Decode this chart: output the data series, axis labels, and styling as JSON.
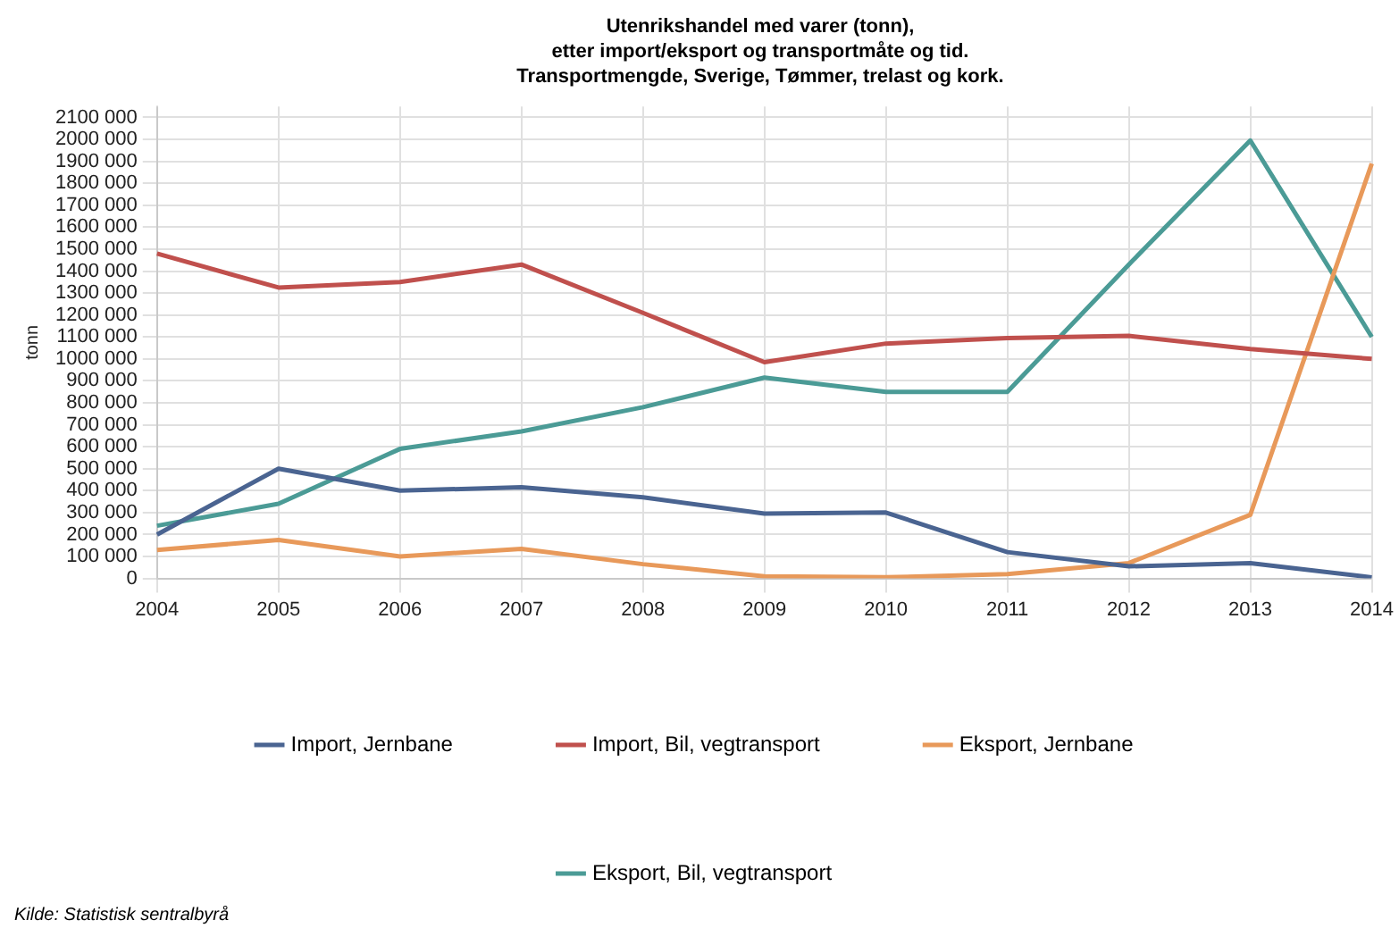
{
  "chart_data": {
    "type": "line",
    "title": "Utenrikshandel med varer (tonn),\netter import/eksport og transportmåte og tid.\nTransportmengde, Sverige, Tømmer, trelast og kork.",
    "ylabel": "tonn",
    "categories": [
      "2004",
      "2005",
      "2006",
      "2007",
      "2008",
      "2009",
      "2010",
      "2011",
      "2012",
      "2013",
      "2014"
    ],
    "series": [
      {
        "name": "Import, Jernbane",
        "color": "#4a6491",
        "values": [
          200000,
          500000,
          400000,
          415000,
          370000,
          295000,
          300000,
          120000,
          55000,
          70000,
          5000
        ]
      },
      {
        "name": "Import, Bil, vegtransport",
        "color": "#c0504d",
        "values": [
          1480000,
          1325000,
          1350000,
          1430000,
          1210000,
          985000,
          1070000,
          1095000,
          1105000,
          1045000,
          1000000
        ]
      },
      {
        "name": "Eksport, Jernbane",
        "color": "#e8995a",
        "values": [
          130000,
          175000,
          100000,
          135000,
          65000,
          10000,
          5000,
          20000,
          70000,
          290000,
          1890000
        ]
      },
      {
        "name": "Eksport, Bil, vegtransport",
        "color": "#4b9b96",
        "values": [
          240000,
          340000,
          590000,
          670000,
          780000,
          915000,
          850000,
          850000,
          1430000,
          1995000,
          1100000
        ]
      }
    ],
    "ylim": [
      0,
      2150000
    ],
    "yticks": [
      0,
      {
        "value": 100000,
        "label": "100 000"
      },
      {
        "value": 200000,
        "label": "200 000"
      },
      {
        "value": 300000,
        "label": "300 000"
      },
      {
        "value": 400000,
        "label": "400 000"
      },
      {
        "value": 500000,
        "label": "500 000"
      },
      {
        "value": 600000,
        "label": "600 000"
      },
      {
        "value": 700000,
        "label": "700 000"
      },
      {
        "value": 800000,
        "label": "800 000"
      },
      {
        "value": 900000,
        "label": "900 000"
      },
      {
        "value": 1000000,
        "label": "1000 000"
      },
      {
        "value": 1100000,
        "label": "1100 000"
      },
      {
        "value": 1200000,
        "label": "1200 000"
      },
      {
        "value": 1300000,
        "label": "1300 000"
      },
      {
        "value": 1400000,
        "label": "1400 000"
      },
      {
        "value": 1500000,
        "label": "1500 000"
      },
      {
        "value": 1600000,
        "label": "1600 000"
      },
      {
        "value": 1700000,
        "label": "1700 000"
      },
      {
        "value": 1800000,
        "label": "1800 000"
      },
      {
        "value": 1900000,
        "label": "1900 000"
      },
      {
        "value": 2000000,
        "label": "2000 000"
      },
      {
        "value": 2100000,
        "label": "2100 000"
      }
    ],
    "grid": true,
    "legend": "bottom",
    "marker": "none",
    "line_style": "solid",
    "annotations": [
      "Kilde: Statistisk sentralbyrå"
    ]
  }
}
